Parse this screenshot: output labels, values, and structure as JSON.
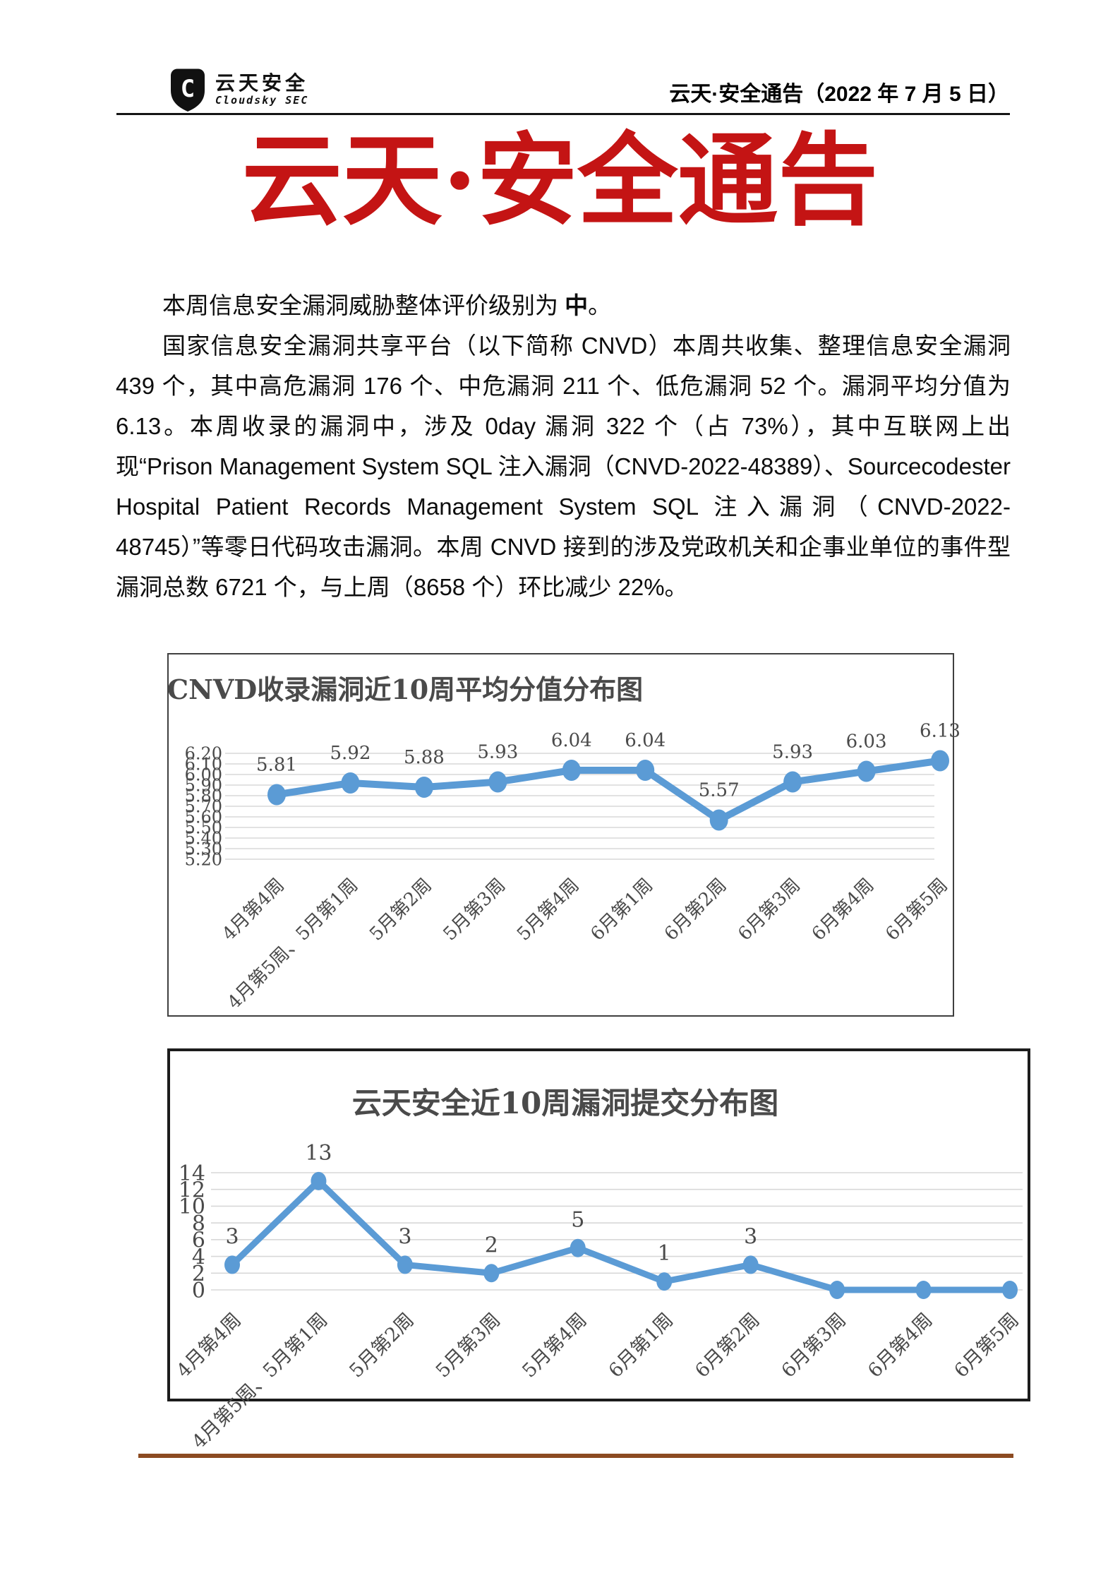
{
  "header": {
    "logo_cn": "云天安全",
    "logo_en": "Cloudsky SEC",
    "doc_ref": "云天·安全通告（2022 年 7 月 5 日）"
  },
  "title": "云天·安全通告",
  "body": {
    "p1_prefix": "本周信息安全漏洞威胁整体评价级别为 ",
    "p1_rating": "中",
    "p1_suffix": "。",
    "p2": "国家信息安全漏洞共享平台（以下简称 CNVD）本周共收集、整理信息安全漏洞 439 个，其中高危漏洞 176 个、中危漏洞 211 个、低危漏洞 52 个。漏洞平均分值为 6.13。本周收录的漏洞中，涉及 0day 漏洞 322 个（占 73%），其中互联网上出现“Prison Management System SQL 注入漏洞（CNVD-2022-48389）、Sourcecodester Hospital Patient Records Management System SQL 注入漏洞（CNVD-2022-48745）”等零日代码攻击漏洞。本周 CNVD 接到的涉及党政机关和企事业单位的事件型漏洞总数 6721 个，与上周（8658 个）环比减少 22%。"
  },
  "colors": {
    "accent_blue": "#5B9BD5",
    "grid": "#D8D8D8",
    "chart_text": "#4a4a4a",
    "title_red": "#C41414",
    "footer_brown": "#8C4B21"
  },
  "chart_data": [
    {
      "type": "line",
      "title": "CNVD收录漏洞近10周平均分值分布图",
      "categories": [
        "4月第4周",
        "4月第5周、5月第1周",
        "5月第2周",
        "5月第3周",
        "5月第4周",
        "6月第1周",
        "6月第2周",
        "6月第3周",
        "6月第4周",
        "6月第5周"
      ],
      "values": [
        5.81,
        5.92,
        5.88,
        5.93,
        6.04,
        6.04,
        5.57,
        5.93,
        6.03,
        6.13
      ],
      "point_labels": [
        "5.81",
        "5.92",
        "5.88",
        "5.93",
        "6.04",
        "6.04",
        "5.57",
        "5.93",
        "6.03",
        "6.13"
      ],
      "ylim": [
        5.2,
        6.2
      ],
      "ytick_labels": [
        "6.20",
        "6.10",
        "6.00",
        "5.90",
        "5.80",
        "5.70",
        "5.60",
        "5.50",
        "5.40",
        "5.30",
        "5.20"
      ],
      "grid": true,
      "legend": "none",
      "line_color": "#5B9BD5"
    },
    {
      "type": "line",
      "title": "云天安全近10周漏洞提交分布图",
      "categories": [
        "4月第4周",
        "4月第5周、5月第1周",
        "5月第2周",
        "5月第3周",
        "5月第4周",
        "6月第1周",
        "6月第2周",
        "6月第3周",
        "6月第4周",
        "6月第5周"
      ],
      "values": [
        3,
        13,
        3,
        2,
        5,
        1,
        3,
        0,
        0,
        0
      ],
      "point_labels": [
        "3",
        "13",
        "3",
        "2",
        "5",
        "1",
        "3",
        "",
        "",
        ""
      ],
      "ylim": [
        0,
        14
      ],
      "ytick_labels": [
        "14",
        "12",
        "10",
        "8",
        "6",
        "4",
        "2",
        "0"
      ],
      "grid": true,
      "legend": "none",
      "line_color": "#5B9BD5"
    }
  ]
}
